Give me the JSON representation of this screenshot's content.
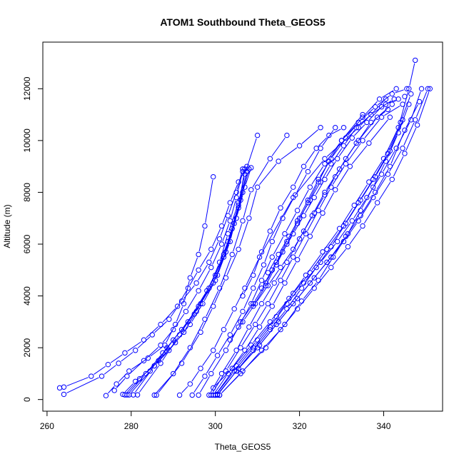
{
  "chart_data": {
    "type": "line",
    "title": "ATOM1 Southbound Theta_GEOS5",
    "xlabel": "Theta_GEOS5",
    "ylabel": "Altitude (m)",
    "xlim": [
      259,
      354
    ],
    "ylim": [
      -450,
      13800
    ],
    "xticks": [
      260,
      280,
      300,
      320,
      340
    ],
    "yticks": [
      0,
      2000,
      4000,
      6000,
      8000,
      10000,
      12000
    ],
    "color": "#0000ff",
    "marker": "open-circle",
    "grid": false,
    "legend": "none",
    "series": [
      {
        "x": [
          263.0,
          264.0,
          270.5,
          274.5,
          278.5,
          283.0,
          287.0,
          291.0,
          293.5,
          296.0,
          299.0,
          301.5,
          303.5,
          305.5,
          307.5
        ],
        "y": [
          450,
          480,
          900,
          1350,
          1800,
          2300,
          2900,
          3600,
          4300,
          5000,
          5800,
          6700,
          7600,
          8400,
          9000
        ]
      },
      {
        "x": [
          264.0,
          273.0,
          277.0,
          281.0,
          285.0,
          289.0,
          292.0,
          295.5,
          298.5,
          301.0,
          303.0,
          305.0,
          306.5
        ],
        "y": [
          200,
          900,
          1400,
          1900,
          2500,
          3100,
          3800,
          4500,
          5300,
          6200,
          7100,
          8000,
          8900
        ]
      },
      {
        "x": [
          274.0,
          276.5,
          279.5,
          284.0,
          288.0,
          290.5,
          292.5,
          294.0,
          296.0,
          297.5,
          299.5
        ],
        "y": [
          150,
          600,
          1100,
          1600,
          2100,
          2900,
          3700,
          4700,
          5600,
          6700,
          8600
        ]
      },
      {
        "x": [
          276.0,
          279.0,
          283.0,
          287.0,
          290.0,
          293.0,
          296.0,
          299.0,
          301.5,
          303.5,
          305.0,
          306.5
        ],
        "y": [
          350,
          900,
          1500,
          2100,
          2700,
          3400,
          4200,
          5100,
          6000,
          6900,
          7800,
          8800
        ]
      },
      {
        "x": [
          278.0,
          281.0,
          285.5,
          289.0,
          292.5,
          295.5,
          298.5,
          301.0,
          303.0,
          305.5,
          307.0,
          310.0
        ],
        "y": [
          200,
          700,
          1300,
          1900,
          2600,
          3400,
          4300,
          5300,
          6400,
          7600,
          8700,
          10200
        ]
      },
      {
        "x": [
          278.5,
          282.0,
          286.5,
          290.5,
          294.0,
          297.0,
          300.0,
          302.0,
          304.0,
          306.0,
          307.5
        ],
        "y": [
          180,
          800,
          1500,
          2200,
          2900,
          3700,
          4600,
          5600,
          6600,
          7700,
          8800
        ]
      },
      {
        "x": [
          279.0,
          283.5,
          287.5,
          292.0,
          296.5,
          300.5,
          303.5,
          305.5,
          307.0
        ],
        "y": [
          180,
          1000,
          1800,
          2700,
          3700,
          4800,
          6100,
          7400,
          8900
        ]
      },
      {
        "x": [
          279.5,
          284.5,
          288.5,
          293.5,
          298.0,
          302.0,
          304.5,
          306.5,
          308.0
        ],
        "y": [
          180,
          1100,
          2000,
          3000,
          4200,
          5500,
          6800,
          8000,
          8900
        ]
      },
      {
        "x": [
          280.5,
          285.5,
          290.0,
          295.0,
          299.5,
          302.5,
          305.0,
          307.0,
          308.5
        ],
        "y": [
          180,
          1300,
          2300,
          3300,
          4500,
          5700,
          7000,
          8200,
          8950
        ]
      },
      {
        "x": [
          281.5,
          287.0,
          291.5,
          296.0,
          300.0,
          303.0,
          305.5,
          307.5
        ],
        "y": [
          180,
          1400,
          2500,
          3600,
          4800,
          6100,
          7500,
          8800
        ]
      },
      {
        "x": [
          285.5,
          290.0,
          294.0,
          297.5,
          301.0,
          304.0,
          306.5,
          308.5,
          313.0,
          317.0
        ],
        "y": [
          170,
          1000,
          2000,
          3100,
          4300,
          5600,
          6900,
          8100,
          9300,
          10200
        ]
      },
      {
        "x": [
          286.0,
          292.0,
          296.5,
          299.5,
          302.5,
          305.5,
          308.0,
          310.0,
          315.0,
          320.0,
          325.0
        ],
        "y": [
          170,
          1400,
          2600,
          3600,
          4700,
          5800,
          7000,
          8200,
          9200,
          9800,
          10500
        ]
      },
      {
        "x": [
          291.5,
          294.0,
          296.5,
          299.5,
          302.0,
          304.5,
          307.0,
          310.5,
          318.5,
          326.0,
          334.0,
          340.5
        ],
        "y": [
          170,
          600,
          1200,
          1900,
          2700,
          3500,
          4300,
          5500,
          7800,
          9300,
          10500,
          11600
        ]
      },
      {
        "x": [
          294.5,
          297.5,
          300.5,
          303.5,
          306.5,
          309.0,
          311.5,
          313.5,
          316.0,
          319.0,
          322.0,
          325.0,
          328.5
        ],
        "y": [
          170,
          900,
          1700,
          2500,
          3400,
          4300,
          5200,
          6100,
          7000,
          7900,
          8800,
          9700,
          10500
        ]
      },
      {
        "x": [
          296.0,
          299.0,
          302.5,
          305.5,
          308.5,
          311.0,
          313.5,
          316.5,
          319.5,
          322.5,
          326.0,
          330.0,
          335.0
        ],
        "y": [
          170,
          1000,
          1900,
          2800,
          3700,
          4600,
          5500,
          6400,
          7300,
          8200,
          9100,
          10000,
          11000
        ]
      },
      {
        "x": [
          298.5,
          301.5,
          305.0,
          308.0,
          311.0,
          314.0,
          317.0,
          320.0,
          323.0,
          326.0,
          329.5,
          333.5,
          338.5,
          342.0
        ],
        "y": [
          170,
          1000,
          1900,
          2800,
          3700,
          4500,
          5300,
          6200,
          7100,
          8000,
          8900,
          9900,
          10900,
          11400
        ]
      },
      {
        "x": [
          299.0,
          302.5,
          306.0,
          309.5,
          312.5,
          315.5,
          318.5,
          321.5,
          324.5,
          327.5,
          331.0,
          335.0,
          339.5,
          344.5
        ],
        "y": [
          170,
          1100,
          2000,
          2900,
          3700,
          4600,
          5500,
          6400,
          7300,
          8200,
          9100,
          10000,
          10900,
          11400
        ]
      },
      {
        "x": [
          299.5,
          303.0,
          307.0,
          310.5,
          313.5,
          316.5,
          319.5,
          322.5,
          325.5,
          328.5,
          332.0,
          336.5,
          341.5
        ],
        "y": [
          170,
          1000,
          1900,
          2800,
          3600,
          4500,
          5400,
          6300,
          7200,
          8100,
          9000,
          9900,
          10900
        ]
      },
      {
        "x": [
          300.0,
          304.5,
          309.0,
          313.0,
          317.0,
          321.0,
          325.0,
          329.0,
          332.5,
          336.0,
          339.5,
          343.0,
          346.5,
          349.0
        ],
        "y": [
          170,
          1100,
          2000,
          2800,
          3700,
          4500,
          5300,
          6100,
          6900,
          7800,
          8700,
          9700,
          10800,
          12000
        ]
      },
      {
        "x": [
          300.5,
          305.0,
          310.0,
          314.5,
          318.5,
          322.5,
          326.5,
          330.5,
          334.0,
          337.5,
          341.0,
          344.5,
          347.5,
          350.5
        ],
        "y": [
          170,
          1100,
          2000,
          2900,
          3700,
          4500,
          5300,
          6100,
          6900,
          7800,
          8700,
          9700,
          10800,
          12000
        ]
      },
      {
        "x": [
          301.0,
          306.0,
          311.0,
          315.5,
          319.5,
          323.5,
          327.5,
          331.5,
          335.0,
          338.5,
          342.0,
          345.0,
          348.0,
          351.0
        ],
        "y": [
          170,
          1000,
          1900,
          2700,
          3500,
          4300,
          5100,
          5900,
          6700,
          7600,
          8500,
          9500,
          10600,
          12000
        ]
      },
      {
        "x": [
          300.5,
          305.5,
          310.5,
          315.0,
          319.5,
          323.5,
          327.5,
          331.0,
          334.5,
          338.0,
          341.5,
          345.0,
          348.5
        ],
        "y": [
          200,
          1200,
          2100,
          3000,
          3900,
          4700,
          5500,
          6300,
          7100,
          8000,
          9000,
          10400,
          11500
        ]
      },
      {
        "x": [
          299.5,
          304.0,
          308.5,
          313.0,
          317.5,
          321.5,
          325.5,
          329.5,
          333.0,
          336.5,
          340.0,
          343.5,
          346.0,
          347.5
        ],
        "y": [
          450,
          1200,
          2100,
          3000,
          3900,
          4800,
          5700,
          6600,
          7500,
          8400,
          9300,
          10500,
          12000,
          13100
        ]
      },
      {
        "x": [
          300.0,
          305.0,
          310.0,
          314.5,
          318.5,
          322.5,
          326.5,
          330.5,
          334.0,
          337.5,
          341.0,
          344.0,
          346.5
        ],
        "y": [
          170,
          1300,
          2300,
          3200,
          4100,
          4900,
          5800,
          6700,
          7600,
          8500,
          9500,
          10700,
          11800
        ]
      },
      {
        "x": [
          301.0,
          306.5,
          312.0,
          316.5,
          320.5,
          324.5,
          328.0,
          331.5,
          334.5,
          337.5,
          340.5,
          343.5,
          346.0
        ],
        "y": [
          170,
          1100,
          2000,
          2900,
          3800,
          4600,
          5500,
          6400,
          7300,
          8200,
          9200,
          10300,
          11400
        ]
      },
      {
        "x": [
          305.0,
          309.0,
          313.0,
          317.0,
          320.5,
          324.0,
          327.5,
          331.0,
          334.5,
          338.0,
          341.5,
          344.5
        ],
        "y": [
          1100,
          1900,
          2700,
          3500,
          4300,
          5100,
          5900,
          6800,
          7700,
          8600,
          9600,
          10800
        ]
      },
      {
        "x": [
          303.5,
          306.5,
          309.5,
          312.5,
          315.5,
          318.5,
          321.0,
          323.5,
          326.0,
          328.5,
          331.0,
          334.0,
          337.0,
          341.0
        ],
        "y": [
          2300,
          3000,
          3700,
          4400,
          5100,
          5800,
          6500,
          7200,
          7900,
          8600,
          9300,
          10000,
          10700,
          11200
        ]
      },
      {
        "x": [
          306.0,
          309.0,
          312.0,
          314.5,
          317.0,
          319.5,
          322.0,
          324.5,
          327.5,
          331.0,
          335.0,
          339.0,
          343.0
        ],
        "y": [
          3000,
          3700,
          4500,
          5300,
          6100,
          6900,
          7700,
          8500,
          9300,
          10100,
          10900,
          11600,
          12000
        ]
      },
      {
        "x": [
          309.0,
          312.0,
          314.5,
          317.0,
          319.5,
          322.0,
          324.5,
          327.0,
          330.0,
          334.0,
          338.0,
          342.0,
          345.5
        ],
        "y": [
          3600,
          4400,
          5200,
          6000,
          6800,
          7600,
          8400,
          9200,
          10000,
          10700,
          11300,
          11800,
          12000
        ]
      },
      {
        "x": [
          311.0,
          313.5,
          316.0,
          318.5,
          321.0,
          323.5,
          326.0,
          329.0,
          332.5,
          336.0,
          339.5,
          342.5
        ],
        "y": [
          4300,
          5000,
          5700,
          6400,
          7100,
          7800,
          8500,
          9300,
          10100,
          10700,
          11300,
          11600
        ]
      },
      {
        "x": [
          312.5,
          315.0,
          317.5,
          320.0,
          322.5,
          325.0,
          327.5,
          330.5,
          333.5,
          337.0,
          340.5,
          343.5,
          345.0
        ],
        "y": [
          4900,
          5600,
          6300,
          7000,
          7700,
          8400,
          9100,
          9800,
          10500,
          11000,
          11400,
          11600,
          11700
        ]
      },
      {
        "x": [
          306.5,
          309.0,
          311.0,
          313.0,
          315.5,
          318.5,
          321.0,
          324.0,
          327.0,
          330.5
        ],
        "y": [
          4000,
          4800,
          5700,
          6500,
          7400,
          8200,
          9000,
          9700,
          10200,
          10500
        ]
      }
    ]
  }
}
